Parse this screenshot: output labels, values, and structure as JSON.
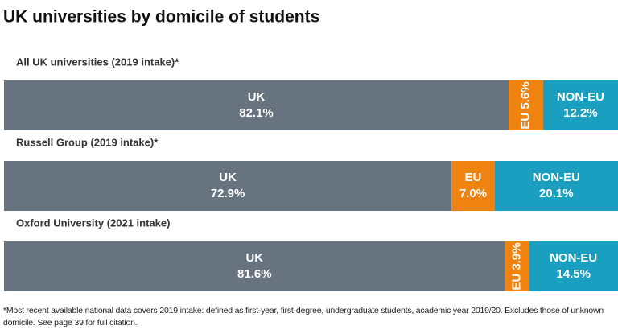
{
  "chart_data": {
    "type": "stacked-bar",
    "title": "UK universities by domicile of students",
    "categories": [
      "All UK universities (2019 intake)*",
      "Russell Group (2019 intake)*",
      "Oxford University (2021 intake)"
    ],
    "series": [
      {
        "name": "UK",
        "color": "#67737e",
        "values": [
          82.1,
          72.9,
          81.6
        ],
        "value_labels": [
          "82.1%",
          "72.9%",
          "81.6%"
        ]
      },
      {
        "name": "EU",
        "color": "#f0820f",
        "values": [
          5.6,
          7.0,
          3.9
        ],
        "value_labels": [
          "5.6%",
          "7.0%",
          "3.9%"
        ]
      },
      {
        "name": "NON-EU",
        "color": "#1b9fc1",
        "values": [
          12.2,
          20.1,
          14.5
        ],
        "value_labels": [
          "12.2%",
          "20.1%",
          "14.5%"
        ]
      }
    ],
    "footnote": "*Most recent available national data covers 2019 intake: defined as first-year, first-degree, undergraduate students, academic year 2019/20. Excludes those of unknown domicile. See page 39 for full citation."
  }
}
